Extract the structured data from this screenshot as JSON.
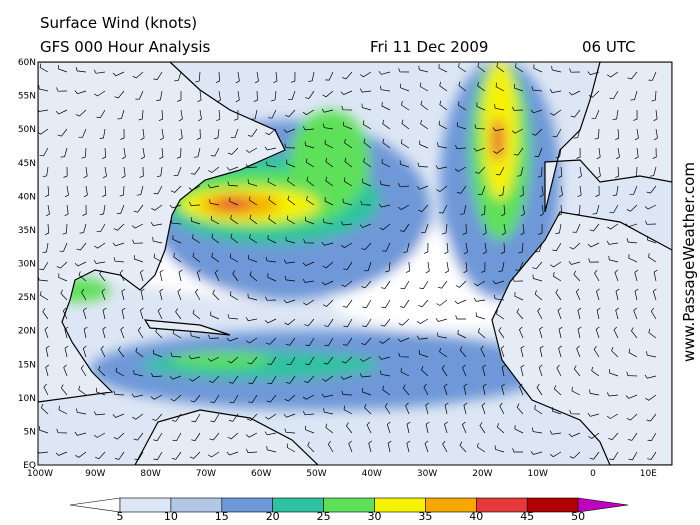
{
  "header": {
    "title": "Surface Wind (knots)",
    "subtitle": "GFS 000 Hour Analysis",
    "date": "Fri 11 Dec 2009",
    "time": "06 UTC"
  },
  "map": {
    "lat_labels": [
      "60N",
      "55N",
      "50N",
      "45N",
      "40N",
      "35N",
      "30N",
      "25N",
      "20N",
      "15N",
      "10N",
      "5N",
      "EQ"
    ],
    "lon_labels": [
      "100W",
      "90W",
      "80W",
      "70W",
      "60W",
      "50W",
      "40W",
      "30W",
      "20W",
      "10W",
      "0",
      "10E"
    ]
  },
  "colorbar": {
    "ticks": [
      5,
      10,
      15,
      20,
      25,
      30,
      35,
      40,
      45,
      50
    ],
    "colors": [
      "#ffffff",
      "#dde6f4",
      "#b2c6e6",
      "#6e98d8",
      "#2ec2a0",
      "#5ee05a",
      "#f6f200",
      "#f6a800",
      "#e63a3a",
      "#b00000",
      "#c000c0"
    ]
  },
  "watermark": "www.PassageWeather.com"
}
